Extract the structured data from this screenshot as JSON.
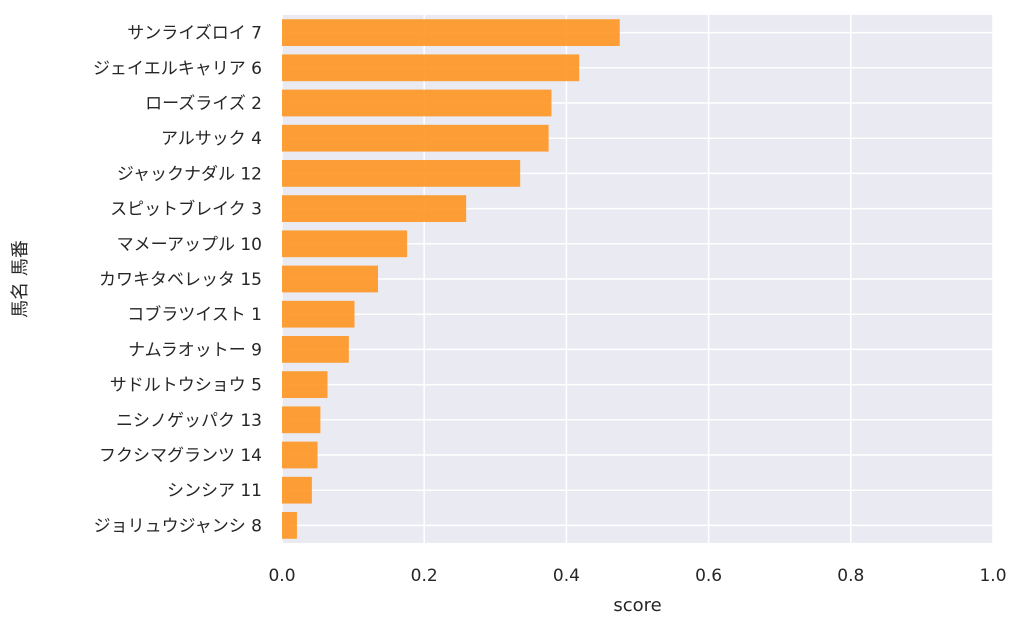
{
  "chart_data": {
    "type": "bar",
    "orientation": "horizontal",
    "categories": [
      "サンライズロイ 7",
      "ジェイエルキャリア 6",
      "ローズライズ 2",
      "アルサック 4",
      "ジャックナダル 12",
      "スピットブレイク 3",
      "マメーアップル 10",
      "カワキタベレッタ 15",
      "コブラツイスト 1",
      "ナムラオットー 9",
      "サドルトウショウ 5",
      "ニシノゲッパク 13",
      "フクシマグランツ 14",
      "シンシア 11",
      "ジョリュウジャンシ 8"
    ],
    "values": [
      0.475,
      0.418,
      0.379,
      0.375,
      0.335,
      0.259,
      0.176,
      0.135,
      0.102,
      0.094,
      0.064,
      0.054,
      0.05,
      0.042,
      0.021
    ],
    "xlabel": "score",
    "ylabel": "馬名 馬番",
    "xlim": [
      0,
      1.0
    ],
    "xticks": [
      "0.0",
      "0.2",
      "0.4",
      "0.6",
      "0.8",
      "1.0"
    ],
    "grid": true,
    "colors": {
      "bar": "#ff9520",
      "plot_background": "#eaeaf2",
      "grid": "#ffffff"
    }
  }
}
